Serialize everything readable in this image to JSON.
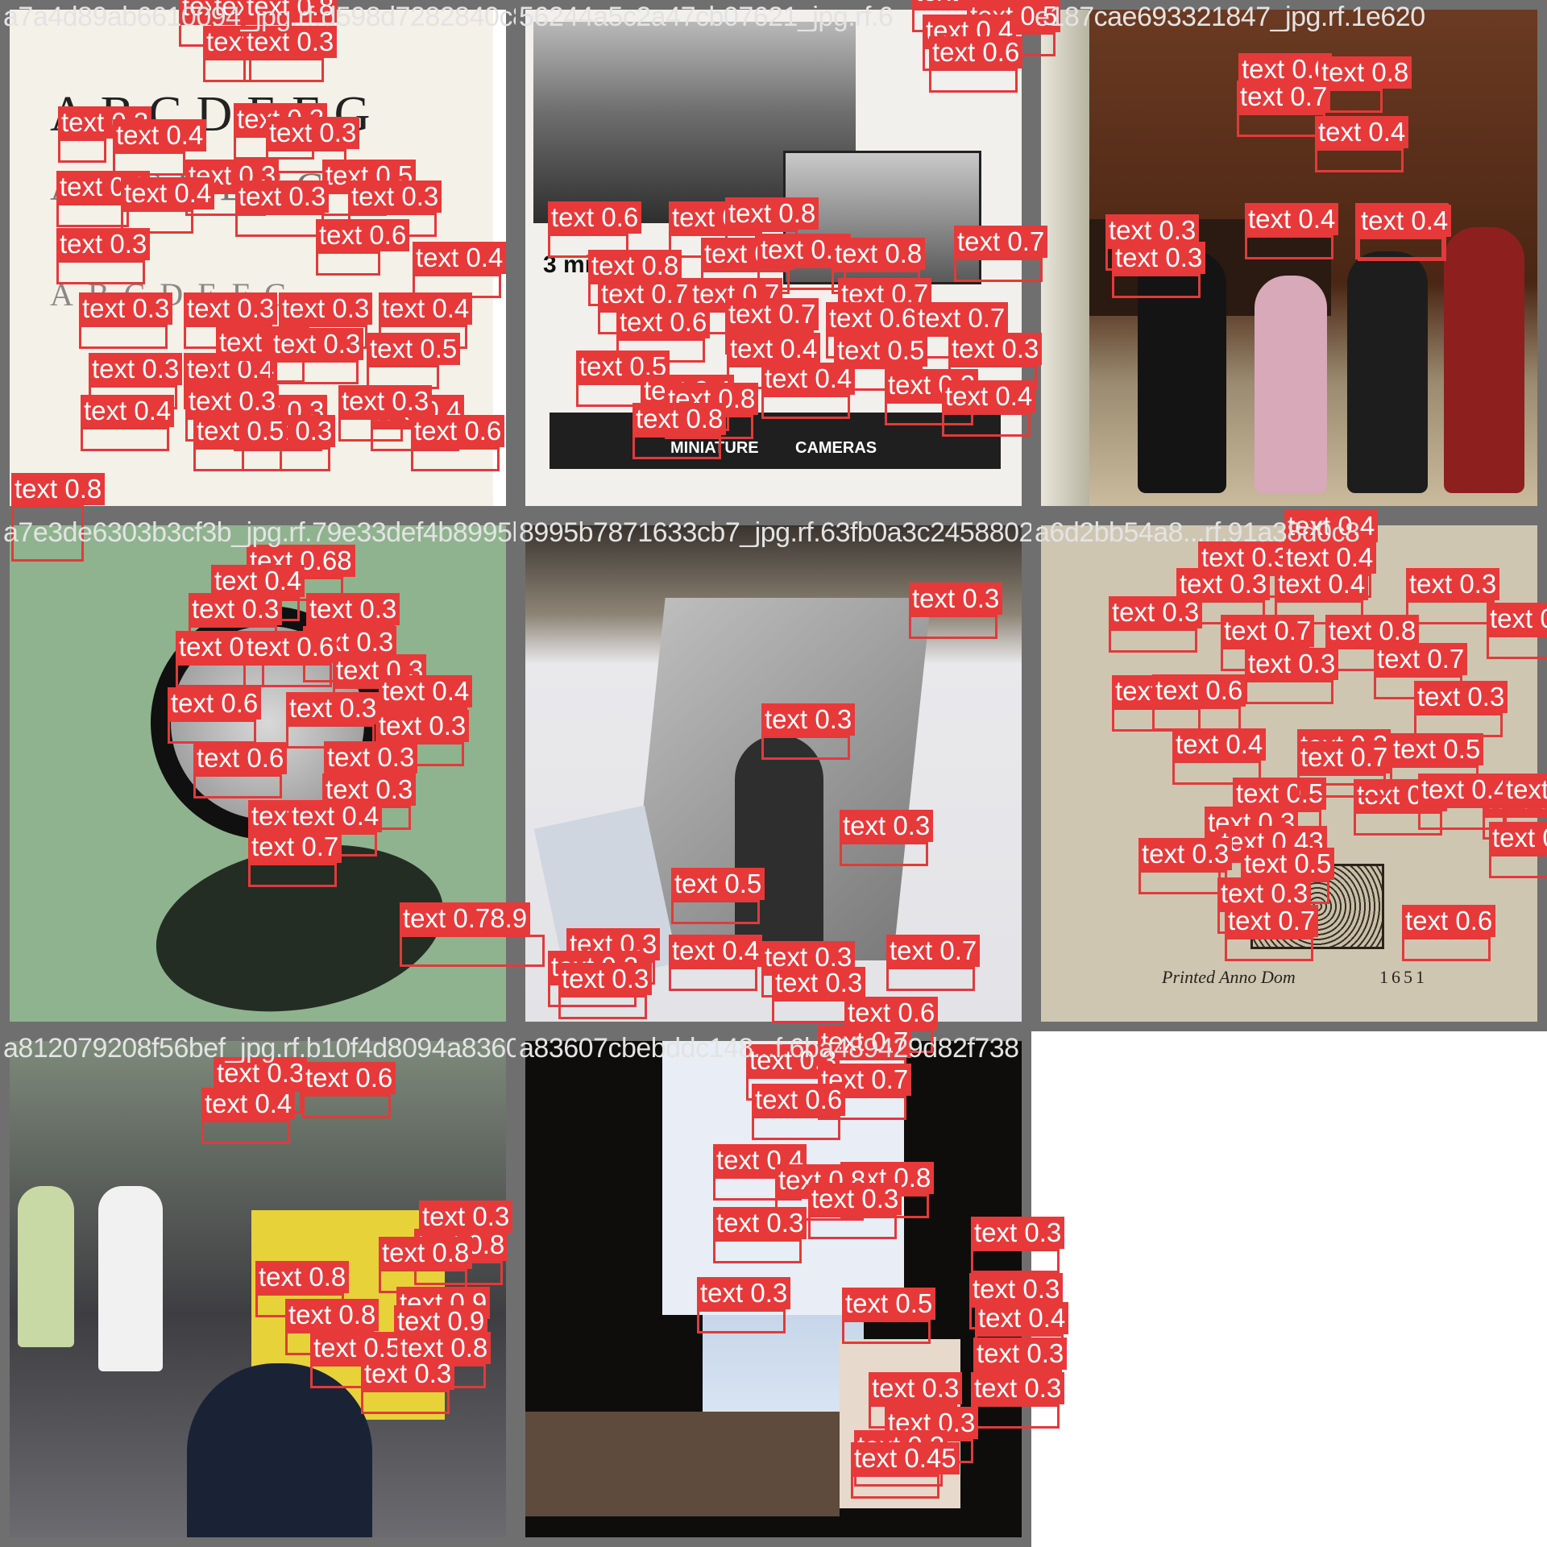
{
  "tiles": [
    {
      "caption": "a7a4d89ab6610094_jpg.rf.d598d7282840c8c517eb07621_jpg.rf.6",
      "labels": [
        "text 0.8",
        "text 0.8",
        "text 0.8",
        "text",
        "text 0.3",
        "text 0.3",
        "text 0.4",
        "text 0.3",
        "text 0.3",
        "text 0.3",
        "text 0.5",
        "text 0.3",
        "text 0.3",
        "text 0.3",
        "text 0.4",
        "text 0.6",
        "text 0.3",
        "text 0.4",
        "text 0.3",
        "text 0.3",
        "text 0.3",
        "text 0.4",
        "text 0.5",
        "text 0.3",
        "text 0.4",
        "text 0.4",
        "text 0.3",
        "text 0.4",
        "text 0.3",
        "text 0.3",
        "text 0.3",
        "text 0.3",
        "text 0.3",
        "text 0.5",
        "text 0.6"
      ]
    },
    {
      "caption": "56244a5c2a47cb07621_jpg.rf.6",
      "labels": [
        "text 0.6",
        "text 0.8",
        "text 0.8",
        "text 0.8",
        "text 0.9",
        "text 0.8",
        "text 0.7",
        "text 0.7",
        "text 0.7",
        "text 0.7",
        "text 0.6",
        "text 0.7",
        "text 0.6",
        "text 0.7",
        "text 0.4",
        "text 0.5",
        "text 0.3",
        "text 0.5",
        "text 0.4",
        "text 0.4",
        "text 0.3",
        "text 0.8",
        "text 0.8",
        "text 0.4",
        "text 0.8"
      ]
    },
    {
      "caption": "e187cae693321847_jpg.rf.1e620",
      "labels": [
        "text 0.3",
        "text 0.5",
        "text 0.4",
        "text 0.6",
        "text 0.6",
        "text 0.8",
        "text 0.7",
        "text 0.4",
        "text 0.4",
        "text 0.3",
        "text 0.3",
        "text 0.4",
        "text 0.4"
      ]
    },
    {
      "caption": "a7e3de6303b3cf3b_jpg.rf.79e33def4b8995b",
      "labels": [
        "text 0.8",
        "text 0.68",
        "text 0.4",
        "text 0.3",
        "text 0.3",
        "text 0.3",
        "text 0.4",
        "text 0.6",
        "text 0.3",
        "text 0.4",
        "text 0.6",
        "text 0.3",
        "text 0.3",
        "text 0.6",
        "text 0.3",
        "text 0.3",
        "text 0.3",
        "text 0.4",
        "text 0.7",
        "text 0.78.9"
      ]
    },
    {
      "caption": "8995b7871633cb7_jpg.rf.63fb0a3c24588027",
      "labels": [
        "text 0.3",
        "text 0.3",
        "text 0.3",
        "text 0.5",
        "text 0.3",
        "text 0.4",
        "text 0.3",
        "text 0.3",
        "text 0.3",
        "text 0.7",
        "text 0.3"
      ]
    },
    {
      "caption": "a6d2bb54a8...rf.91a38d0c8",
      "labels": [
        "text 0.4",
        "text 0.3",
        "text 0.4",
        "text 0.3",
        "text 0.4",
        "text 0.3",
        "text 0.4",
        "text 0.3",
        "text 0.7",
        "text 0.8",
        "text 0.4",
        "text 0.6",
        "text 0.3",
        "text 0.7",
        "text 0.3",
        "text 0.4",
        "text 0.3",
        "text 0.5",
        "text 0.3",
        "text 0.6",
        "text 0.5",
        "text 0.7",
        "text 0.4",
        "text 0.44",
        "text 0.3",
        "text 0.43",
        "text 0.5",
        "text 0.3",
        "text 0.3",
        "text 0.35",
        "text 0.7",
        "text 0.6"
      ]
    },
    {
      "caption": "a812079208f56bef_jpg.rf.b10f4d8094a83607",
      "labels": [
        "text 0.3",
        "text 0.6",
        "text 0.4",
        "text 0.3",
        "text 0.8",
        "text 0.8",
        "text 0.8",
        "text 0.9",
        "text 0.8",
        "text 0.9",
        "text 0.5",
        "text 0.8",
        "text 0.3"
      ]
    },
    {
      "caption": "a83607cbebddc148...f.6ba489429d82f738",
      "labels": [
        "text 0.6",
        "text 0.7",
        "text 0.3",
        "text 0.7",
        "text 0.6",
        "text 0.4",
        "text 0.8",
        "text 0.8",
        "text 0.3",
        "text 0.3",
        "text 0.3",
        "text 0.3",
        "text 0.5",
        "text 0.3",
        "text 0.4",
        "text 0.3",
        "text 0.3",
        "text 0.3",
        "text 0.3",
        "text 0.3",
        "text 0.45"
      ]
    }
  ],
  "scene_text": {
    "alphabet": "ABCDEFG",
    "miles": "3 miles",
    "miniature": "MINIATURE",
    "cameras": "CAMERAS",
    "year": "1651",
    "printed": "Printed  Anno  Dom"
  },
  "colors": {
    "label_bg": "#e8393a",
    "box": "#e23a3a",
    "tile_frame": "#6f6f6f",
    "caption": "#e3e3e3"
  }
}
